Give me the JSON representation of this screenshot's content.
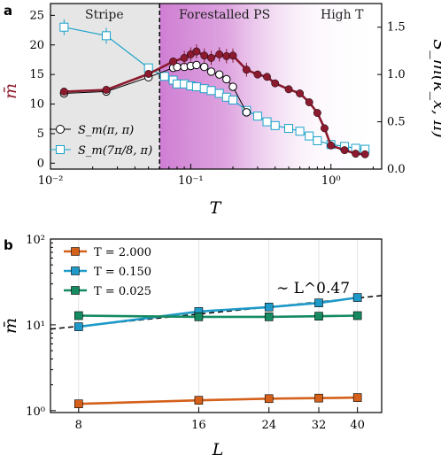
{
  "colors": {
    "mbar_a": "#8b1a2e",
    "sm_pi": "#000000",
    "sm_7pi8": "#1aa3c9",
    "t2": "#d4601a",
    "t015": "#1f9ac8",
    "t0025": "#168a60",
    "fit": "#000000",
    "stripe_bg": "#e6e6e6",
    "ps_bg": "#d9a0dc"
  },
  "panels": {
    "a": "a",
    "b": "b"
  },
  "chart_data": [
    {
      "panel": "a",
      "type": "line",
      "xscale": "log",
      "xlim": [
        0.01,
        2.3
      ],
      "ylim": [
        -1,
        27
      ],
      "y2lim": [
        0,
        1.75
      ],
      "xlabel": "T",
      "ylabel": "m̄",
      "y2label": "S_m(k_x, π)",
      "xticks": [
        "10⁻²",
        "10⁻¹",
        "10⁰"
      ],
      "yticks": [
        "0",
        "5",
        "10",
        "15",
        "20",
        "25"
      ],
      "y2ticks": [
        "0.0",
        "0.5",
        "1.0",
        "1.5"
      ],
      "regions": [
        {
          "name": "Stripe",
          "from": 0.01,
          "to": 0.06
        },
        {
          "name": "Forestalled PS",
          "from": 0.06,
          "to": 0.7
        },
        {
          "name": "High T",
          "from": 0.7,
          "to": 2.3
        }
      ],
      "transition_T": 0.06,
      "legend": [
        "S_m(π, π)",
        "S_m(7π/8, π)"
      ],
      "series": [
        {
          "key": "mbar",
          "axis": "left",
          "x": [
            0.0125,
            0.025,
            0.05,
            0.075,
            0.09,
            0.1,
            0.11,
            0.125,
            0.14,
            0.16,
            0.18,
            0.2,
            0.25,
            0.3,
            0.35,
            0.4,
            0.5,
            0.6,
            0.7,
            0.8,
            0.9,
            1.0,
            1.25,
            1.5,
            1.75
          ],
          "y": [
            12.1,
            12.4,
            15.1,
            17.2,
            17.8,
            18.4,
            18.9,
            18.2,
            17.8,
            18.4,
            18.1,
            18.2,
            15.8,
            15.0,
            14.6,
            13.5,
            12.5,
            11.8,
            10.3,
            8.5,
            5.9,
            3.0,
            2.2,
            1.6,
            1.5
          ]
        },
        {
          "key": "sm_pi",
          "axis": "right",
          "x": [
            0.0125,
            0.025,
            0.05,
            0.075,
            0.08,
            0.09,
            0.1,
            0.11,
            0.125,
            0.14,
            0.16,
            0.18,
            0.2,
            0.25
          ],
          "y": [
            0.8,
            0.82,
            0.97,
            1.07,
            1.08,
            1.08,
            1.09,
            1.1,
            1.08,
            1.03,
            1.0,
            0.95,
            0.87,
            0.6
          ]
        },
        {
          "key": "sm_7pi8",
          "axis": "right",
          "x": [
            0.0125,
            0.025,
            0.05,
            0.065,
            0.075,
            0.08,
            0.09,
            0.1,
            0.11,
            0.125,
            0.14,
            0.16,
            0.18,
            0.2,
            0.25,
            0.3,
            0.35,
            0.4,
            0.5,
            0.6,
            0.7,
            0.8,
            1.0,
            1.25,
            1.5,
            1.75
          ],
          "y": [
            1.5,
            1.41,
            1.07,
            0.98,
            0.94,
            0.9,
            0.9,
            0.88,
            0.87,
            0.85,
            0.83,
            0.8,
            0.76,
            0.73,
            0.62,
            0.56,
            0.5,
            0.46,
            0.43,
            0.4,
            0.35,
            0.3,
            0.26,
            0.24,
            0.22,
            0.21
          ]
        }
      ]
    },
    {
      "panel": "b",
      "type": "line",
      "xscale": "log",
      "yscale": "log",
      "xlim": [
        6.8,
        46
      ],
      "ylim": [
        0.95,
        100
      ],
      "xlabel": "L",
      "ylabel": "m̄",
      "xticks": [
        8,
        16,
        24,
        32,
        40
      ],
      "yticks": [
        "10⁰",
        "10¹",
        "10²"
      ],
      "fit_label": "∼ L^0.47",
      "fit_exponent": 0.47,
      "series": [
        {
          "name": "T = 2.000",
          "key": "t2",
          "x": [
            8,
            16,
            24,
            32,
            40
          ],
          "y": [
            1.2,
            1.32,
            1.38,
            1.4,
            1.42
          ]
        },
        {
          "name": "T = 0.150",
          "key": "t015",
          "x": [
            8,
            16,
            24,
            32,
            40
          ],
          "y": [
            9.5,
            14.3,
            16.1,
            18.0,
            20.8
          ]
        },
        {
          "name": "T = 0.025",
          "key": "t0025",
          "x": [
            8,
            16,
            24,
            32,
            40
          ],
          "y": [
            12.8,
            12.4,
            12.4,
            12.6,
            12.8
          ]
        }
      ]
    }
  ]
}
